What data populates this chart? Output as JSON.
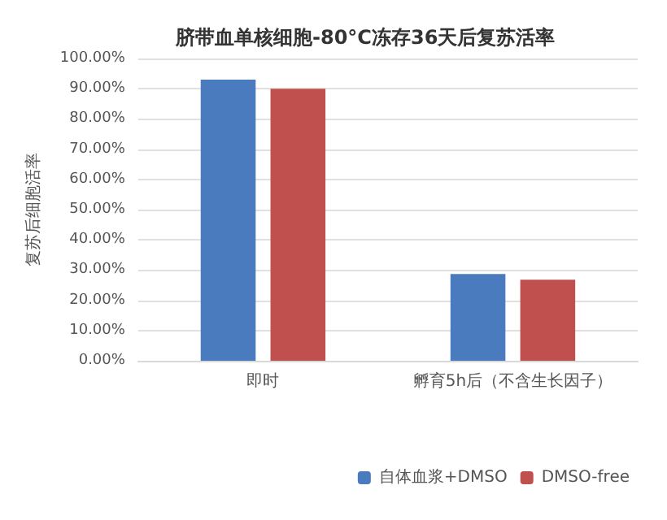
{
  "chart_data": {
    "type": "bar",
    "title": "脐带血单核细胞-80°C冻存36天后复苏活率",
    "ylabel": "复苏后细胞活率",
    "categories": [
      "即时",
      "孵育5h后（不含生长因子）"
    ],
    "series": [
      {
        "name": "自体血浆+DMSO",
        "color": "#4a7bbf",
        "values": [
          93,
          28.7
        ]
      },
      {
        "name": "DMSO-free",
        "color": "#c0504d",
        "values": [
          90,
          26.8
        ]
      }
    ],
    "ylim": [
      0,
      100
    ],
    "yticks": [
      {
        "value": 0,
        "label": "0.00%"
      },
      {
        "value": 10,
        "label": "10.00%"
      },
      {
        "value": 20,
        "label": "20.00%"
      },
      {
        "value": 30,
        "label": "30.00%"
      },
      {
        "value": 40,
        "label": "40.00%"
      },
      {
        "value": 50,
        "label": "50.00%"
      },
      {
        "value": 60,
        "label": "60.00%"
      },
      {
        "value": 70,
        "label": "70.00%"
      },
      {
        "value": 80,
        "label": "80.00%"
      },
      {
        "value": 90,
        "label": "90.00%"
      },
      {
        "value": 100,
        "label": "100.00%"
      }
    ],
    "grid": "y",
    "legend": "bottom right"
  }
}
